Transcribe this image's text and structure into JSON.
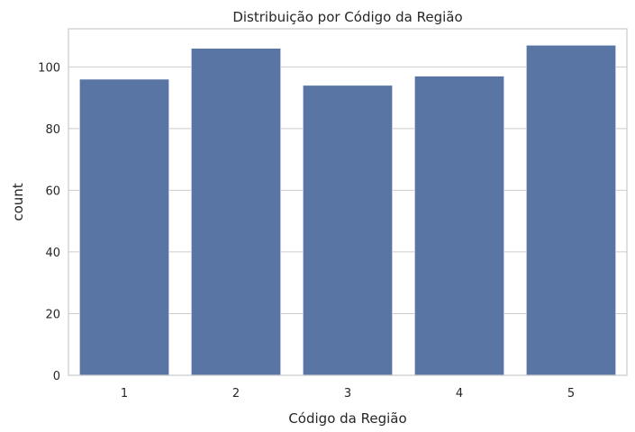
{
  "chart_data": {
    "type": "bar",
    "title": "Distribuição por Código da Região",
    "xlabel": "Código da Região",
    "ylabel": "count",
    "categories": [
      "1",
      "2",
      "3",
      "4",
      "5"
    ],
    "values": [
      96,
      106,
      94,
      97,
      107
    ],
    "ylim": [
      0,
      112.35
    ],
    "yticks": [
      0,
      20,
      40,
      60,
      80,
      100
    ],
    "grid": true,
    "bar_color": "#5875a4",
    "grid_color": "#cccccc",
    "text_color": "#262626"
  }
}
